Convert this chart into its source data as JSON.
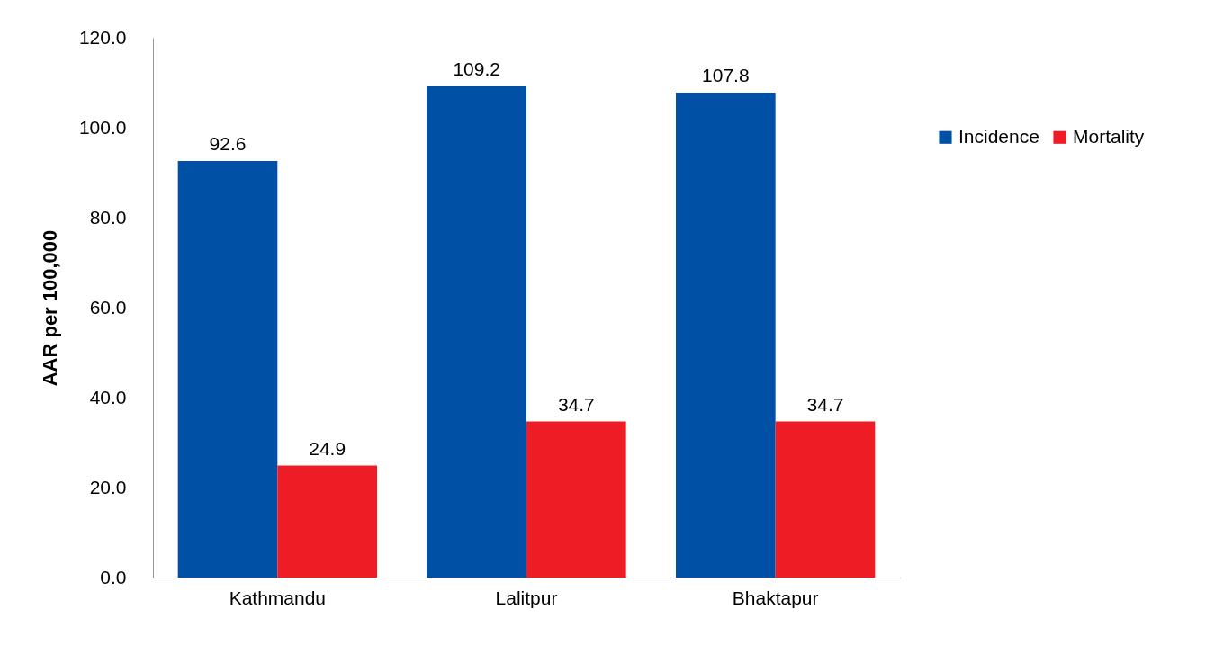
{
  "chart_data": {
    "type": "bar",
    "ylabel": "AAR per 100,000",
    "categories": [
      "Kathmandu",
      "Lalitpur",
      "Bhaktapur"
    ],
    "series": [
      {
        "name": "Incidence",
        "color": "#0050a5",
        "values": [
          92.6,
          109.2,
          107.8
        ]
      },
      {
        "name": "Mortality",
        "color": "#ee1c25",
        "values": [
          24.9,
          34.7,
          34.7
        ]
      }
    ],
    "ylim": [
      0,
      120
    ],
    "yticks": [
      {
        "value": 0,
        "label": "0.0"
      },
      {
        "value": 20,
        "label": "20.0"
      },
      {
        "value": 40,
        "label": "40.0"
      },
      {
        "value": 60,
        "label": "60.0"
      },
      {
        "value": 80,
        "label": "80.0"
      },
      {
        "value": 100,
        "label": "100.0"
      },
      {
        "value": 120,
        "label": "120.0"
      }
    ],
    "data_labels": true,
    "grid": false,
    "legend": "top right"
  }
}
